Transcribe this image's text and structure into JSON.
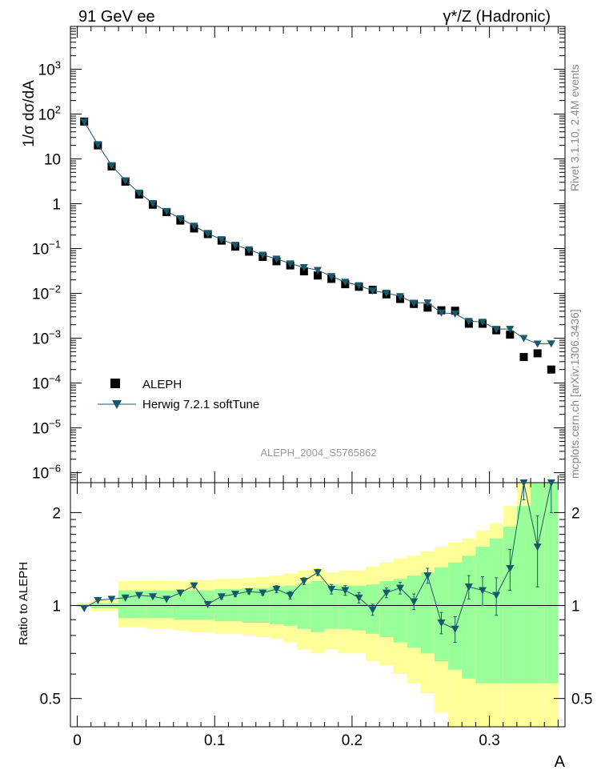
{
  "header": {
    "left": "91 GeV ee",
    "right": "γ*/Z (Hadronic)"
  },
  "side_text": {
    "upper": "Rivet 3.1.10,  2.4M events",
    "lower": "mcplots.cern.ch [arXiv:1306.3436]"
  },
  "analysis_label": "ALEPH_2004_S5765862",
  "colors": {
    "data": "#000000",
    "mc": "#17586b",
    "band_outer": "#ffff99",
    "band_inner": "#99ff99"
  },
  "chart_data": [
    {
      "type": "scatter",
      "panel": "main",
      "ylabel": "1/σ  dσ/dA",
      "yscale": "log",
      "xlim": [
        -0.005,
        0.355
      ],
      "ylim": [
        6e-07,
        9000
      ],
      "y_ticks": [
        {
          "value": 1e-06,
          "base": "10",
          "exp": "−6"
        },
        {
          "value": 1e-05,
          "base": "10",
          "exp": "−5"
        },
        {
          "value": 0.0001,
          "base": "10",
          "exp": "−4"
        },
        {
          "value": 0.001,
          "base": "10",
          "exp": "−3"
        },
        {
          "value": 0.01,
          "base": "10",
          "exp": "−2"
        },
        {
          "value": 0.1,
          "base": "10",
          "exp": "−1"
        },
        {
          "value": 1,
          "base": "1",
          "exp": ""
        },
        {
          "value": 10,
          "base": "10",
          "exp": ""
        },
        {
          "value": 100,
          "base": "10",
          "exp": "2"
        },
        {
          "value": 1000,
          "base": "10",
          "exp": "3"
        }
      ],
      "legend": {
        "position": "bottom-left"
      },
      "series": [
        {
          "name": "ALEPH",
          "marker": "square",
          "x": [
            0.005,
            0.015,
            0.025,
            0.035,
            0.045,
            0.055,
            0.065,
            0.075,
            0.085,
            0.095,
            0.105,
            0.115,
            0.125,
            0.135,
            0.145,
            0.155,
            0.165,
            0.175,
            0.185,
            0.195,
            0.205,
            0.215,
            0.225,
            0.235,
            0.245,
            0.255,
            0.265,
            0.275,
            0.285,
            0.295,
            0.305,
            0.315,
            0.325,
            0.335,
            0.345
          ],
          "y": [
            68,
            20,
            6.8,
            3.1,
            1.6,
            0.95,
            0.65,
            0.42,
            0.28,
            0.21,
            0.15,
            0.11,
            0.085,
            0.065,
            0.052,
            0.042,
            0.031,
            0.025,
            0.021,
            0.016,
            0.014,
            0.012,
            0.0095,
            0.0075,
            0.0058,
            0.0048,
            0.0042,
            0.0041,
            0.0021,
            0.0021,
            0.0015,
            0.0012,
            0.00038,
            0.00046,
            0.0002
          ]
        },
        {
          "name": "Herwig 7.2.1 softTune",
          "marker": "triangle-down",
          "x": [
            0.005,
            0.015,
            0.025,
            0.035,
            0.045,
            0.055,
            0.065,
            0.075,
            0.085,
            0.095,
            0.105,
            0.115,
            0.125,
            0.135,
            0.145,
            0.155,
            0.165,
            0.175,
            0.185,
            0.195,
            0.205,
            0.215,
            0.225,
            0.235,
            0.245,
            0.255,
            0.265,
            0.275,
            0.285,
            0.295,
            0.305,
            0.315,
            0.325,
            0.335,
            0.345
          ],
          "y": [
            67,
            21,
            7.1,
            3.3,
            1.75,
            1.02,
            0.68,
            0.47,
            0.32,
            0.215,
            0.16,
            0.12,
            0.095,
            0.072,
            0.059,
            0.046,
            0.038,
            0.033,
            0.024,
            0.018,
            0.015,
            0.0115,
            0.0102,
            0.0086,
            0.0061,
            0.0062,
            0.0037,
            0.0035,
            0.0024,
            0.0023,
            0.0016,
            0.0016,
            0.001,
            0.00075,
            0.00076
          ]
        }
      ]
    },
    {
      "type": "scatter",
      "panel": "ratio",
      "ylabel": "Ratio to ALEPH",
      "xlabel": "A",
      "yscale": "log",
      "xlim": [
        -0.005,
        0.355
      ],
      "ylim": [
        0.405,
        2.5
      ],
      "x_ticks": [
        0,
        0.1,
        0.2,
        0.3
      ],
      "x_tick_labels": [
        "0",
        "0.1",
        "0.2",
        "0.3"
      ],
      "y_ticks": [
        0.5,
        1,
        2
      ],
      "y_tick_labels": [
        "0.5",
        "1",
        "2"
      ],
      "bins": [
        0,
        0.01,
        0.02,
        0.03,
        0.04,
        0.05,
        0.06,
        0.07,
        0.08,
        0.09,
        0.1,
        0.11,
        0.12,
        0.13,
        0.14,
        0.15,
        0.16,
        0.17,
        0.18,
        0.19,
        0.2,
        0.21,
        0.22,
        0.23,
        0.24,
        0.25,
        0.26,
        0.27,
        0.28,
        0.29,
        0.3,
        0.31,
        0.32,
        0.33,
        0.34,
        0.35
      ],
      "band_outer": [
        [
          0.99,
          1.02
        ],
        [
          0.96,
          1.04
        ],
        [
          0.96,
          1.04
        ],
        [
          0.85,
          1.2
        ],
        [
          0.85,
          1.2
        ],
        [
          0.84,
          1.2
        ],
        [
          0.84,
          1.2
        ],
        [
          0.83,
          1.2
        ],
        [
          0.82,
          1.21
        ],
        [
          0.82,
          1.21
        ],
        [
          0.81,
          1.22
        ],
        [
          0.81,
          1.22
        ],
        [
          0.8,
          1.23
        ],
        [
          0.79,
          1.24
        ],
        [
          0.78,
          1.25
        ],
        [
          0.76,
          1.27
        ],
        [
          0.72,
          1.3
        ],
        [
          0.7,
          1.32
        ],
        [
          0.72,
          1.28
        ],
        [
          0.7,
          1.3
        ],
        [
          0.7,
          1.3
        ],
        [
          0.66,
          1.34
        ],
        [
          0.64,
          1.38
        ],
        [
          0.6,
          1.42
        ],
        [
          0.56,
          1.45
        ],
        [
          0.52,
          1.5
        ],
        [
          0.45,
          1.55
        ],
        [
          0.38,
          1.6
        ],
        [
          0.3,
          1.65
        ],
        [
          0.3,
          1.75
        ],
        [
          0.3,
          1.85
        ],
        [
          0.3,
          2.1
        ],
        [
          0.3,
          2.5
        ],
        [
          0.3,
          2.5
        ],
        [
          0.3,
          2.5
        ]
      ],
      "band_inner": [
        [
          0.99,
          1.01
        ],
        [
          0.98,
          1.02
        ],
        [
          0.98,
          1.02
        ],
        [
          0.91,
          1.12
        ],
        [
          0.91,
          1.12
        ],
        [
          0.91,
          1.12
        ],
        [
          0.91,
          1.12
        ],
        [
          0.9,
          1.12
        ],
        [
          0.9,
          1.12
        ],
        [
          0.9,
          1.12
        ],
        [
          0.89,
          1.13
        ],
        [
          0.89,
          1.13
        ],
        [
          0.88,
          1.14
        ],
        [
          0.88,
          1.14
        ],
        [
          0.87,
          1.15
        ],
        [
          0.86,
          1.16
        ],
        [
          0.84,
          1.18
        ],
        [
          0.82,
          1.2
        ],
        [
          0.84,
          1.17
        ],
        [
          0.84,
          1.16
        ],
        [
          0.83,
          1.16
        ],
        [
          0.81,
          1.17
        ],
        [
          0.79,
          1.2
        ],
        [
          0.76,
          1.22
        ],
        [
          0.73,
          1.25
        ],
        [
          0.7,
          1.28
        ],
        [
          0.66,
          1.33
        ],
        [
          0.62,
          1.38
        ],
        [
          0.58,
          1.45
        ],
        [
          0.56,
          1.55
        ],
        [
          0.56,
          1.65
        ],
        [
          0.56,
          1.8
        ],
        [
          0.56,
          2.1
        ],
        [
          0.56,
          2.5
        ],
        [
          0.56,
          2.5
        ]
      ],
      "series": [
        {
          "name": "Herwig 7.2.1 softTune",
          "x": [
            0.005,
            0.015,
            0.025,
            0.035,
            0.045,
            0.055,
            0.065,
            0.075,
            0.085,
            0.095,
            0.105,
            0.115,
            0.125,
            0.135,
            0.145,
            0.155,
            0.165,
            0.175,
            0.185,
            0.195,
            0.205,
            0.215,
            0.225,
            0.235,
            0.245,
            0.255,
            0.265,
            0.275,
            0.285,
            0.295,
            0.305,
            0.315,
            0.325,
            0.335,
            0.345
          ],
          "y": [
            0.98,
            1.04,
            1.05,
            1.06,
            1.08,
            1.07,
            1.05,
            1.1,
            1.16,
            1.01,
            1.07,
            1.09,
            1.11,
            1.1,
            1.13,
            1.08,
            1.2,
            1.28,
            1.13,
            1.12,
            1.06,
            0.97,
            1.1,
            1.14,
            1.03,
            1.25,
            0.88,
            0.84,
            1.15,
            1.12,
            1.08,
            1.32,
            2.5,
            1.55,
            2.5
          ],
          "err": [
            0.01,
            0.01,
            0.01,
            0.01,
            0.01,
            0.01,
            0.01,
            0.01,
            0.01,
            0.01,
            0.02,
            0.02,
            0.02,
            0.02,
            0.03,
            0.03,
            0.03,
            0.03,
            0.04,
            0.04,
            0.04,
            0.04,
            0.04,
            0.05,
            0.06,
            0.07,
            0.07,
            0.08,
            0.1,
            0.12,
            0.15,
            0.2,
            0.3,
            0.4,
            0.5
          ]
        }
      ]
    }
  ]
}
